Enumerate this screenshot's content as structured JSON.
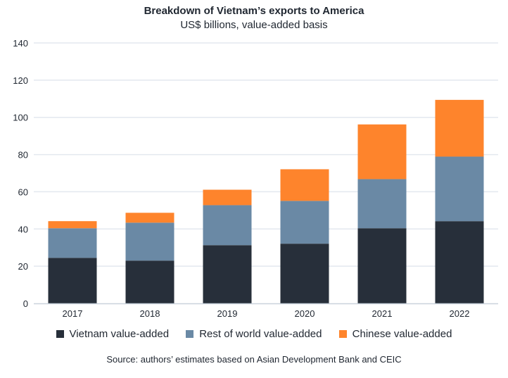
{
  "chart_data": {
    "type": "bar",
    "stacked": true,
    "title": "Breakdown of Vietnam’s exports to America",
    "subtitle": "US$ billions, value-added basis",
    "xlabel": "",
    "ylabel": "",
    "ylim": [
      0,
      140
    ],
    "yticks": [
      0,
      20,
      40,
      60,
      80,
      100,
      120,
      140
    ],
    "grid": true,
    "legend_position": "bottom",
    "categories": [
      "2017",
      "2018",
      "2019",
      "2020",
      "2021",
      "2022"
    ],
    "series": [
      {
        "name": "Vietnam value-added",
        "color": "#272f3a",
        "values": [
          24.5,
          23.0,
          31.3,
          32.1,
          40.4,
          44.2
        ]
      },
      {
        "name": "Rest of world value-added",
        "color": "#6a89a5",
        "values": [
          15.9,
          20.4,
          21.5,
          23.0,
          26.4,
          34.7
        ]
      },
      {
        "name": "Chinese value-added",
        "color": "#fe842c",
        "values": [
          3.8,
          5.3,
          8.3,
          17.0,
          29.4,
          30.5
        ]
      }
    ],
    "source": "Source: authors’ estimates based on Asian Development Bank and CEIC"
  }
}
